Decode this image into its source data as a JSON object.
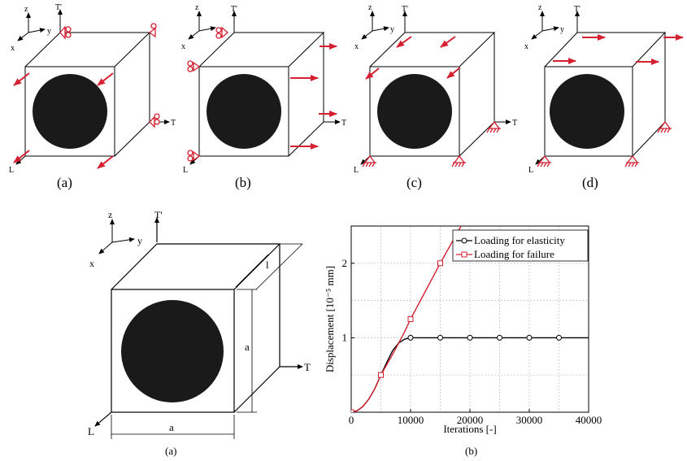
{
  "top_panels": [
    {
      "caption": "(a)"
    },
    {
      "caption": "(b)"
    },
    {
      "caption": "(c)"
    },
    {
      "caption": "(d)"
    }
  ],
  "axes_labels": {
    "z": "z",
    "y": "y",
    "x": "x",
    "T": "T",
    "Tp": "T'",
    "L": "L"
  },
  "geometry_labels": {
    "a_bottom": "a",
    "a_side": "a",
    "l": "l"
  },
  "bottom_captions": {
    "left": "(a)",
    "right": "(b)"
  },
  "colors": {
    "arrow": "#d42030",
    "fill": "#1a1a1a",
    "grid": "#bbbbbb"
  },
  "chart_data": {
    "type": "line",
    "xlabel": "Iterations [-]",
    "ylabel": "Displacement [10⁻⁵ mm]",
    "xlim": [
      0,
      40000
    ],
    "ylim": [
      0,
      2.5
    ],
    "xticks": [
      0,
      10000,
      20000,
      30000,
      40000
    ],
    "yticks": [
      1,
      2
    ],
    "xtick_labels": [
      "0",
      "10000",
      "20000",
      "30000",
      "40000"
    ],
    "ytick_labels": [
      "1",
      "2"
    ],
    "grid": true,
    "legend_position": "top-right",
    "series": [
      {
        "name": "Loading for elasticity",
        "color": "#000000",
        "marker": "circle",
        "curve_x": [
          0,
          1000,
          2000,
          3000,
          4000,
          5000,
          6000,
          7000,
          8000,
          9000,
          10000,
          12000,
          15000,
          20000,
          25000,
          30000,
          35000,
          40000
        ],
        "curve_y": [
          0,
          0.02,
          0.08,
          0.18,
          0.32,
          0.5,
          0.67,
          0.83,
          0.93,
          0.98,
          1.0,
          1.0,
          1.0,
          1.0,
          1.0,
          1.0,
          1.0,
          1.0
        ],
        "marker_x": [
          0,
          5000,
          10000,
          15000,
          20000,
          25000,
          30000,
          35000
        ],
        "marker_y": [
          0,
          0.5,
          1.0,
          1.0,
          1.0,
          1.0,
          1.0,
          1.0
        ]
      },
      {
        "name": "Loading for failure",
        "color": "#d42030",
        "marker": "square",
        "curve_x": [
          0,
          1000,
          2000,
          3000,
          4000,
          5000,
          6000,
          7000,
          8000,
          9000,
          10000,
          12000,
          15000,
          18500
        ],
        "curve_y": [
          0,
          0.02,
          0.08,
          0.18,
          0.32,
          0.5,
          0.64,
          0.78,
          0.93,
          1.08,
          1.25,
          1.55,
          2.0,
          2.5
        ],
        "marker_x": [
          0,
          5000,
          10000,
          15000
        ],
        "marker_y": [
          0,
          0.5,
          1.25,
          2.0
        ]
      }
    ]
  }
}
